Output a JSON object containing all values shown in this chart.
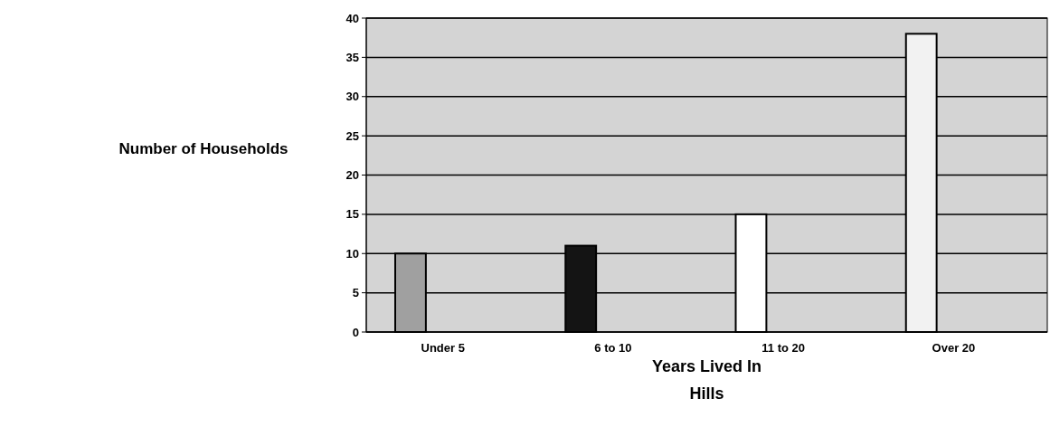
{
  "chart_data": {
    "type": "bar",
    "categories": [
      "Under 5",
      "6 to 10",
      "11 to 20",
      "Over 20"
    ],
    "values": [
      10,
      11,
      15,
      38
    ],
    "colors": [
      "#a0a0a0",
      "#141414",
      "#ffffff",
      "#f2f2f2"
    ],
    "xlabel": "Years Lived In Hills",
    "ylabel": "Number of Households",
    "ylim": [
      0,
      40
    ],
    "yticks": [
      0,
      5,
      10,
      15,
      20,
      25,
      30,
      35,
      40
    ],
    "grid": "y"
  }
}
